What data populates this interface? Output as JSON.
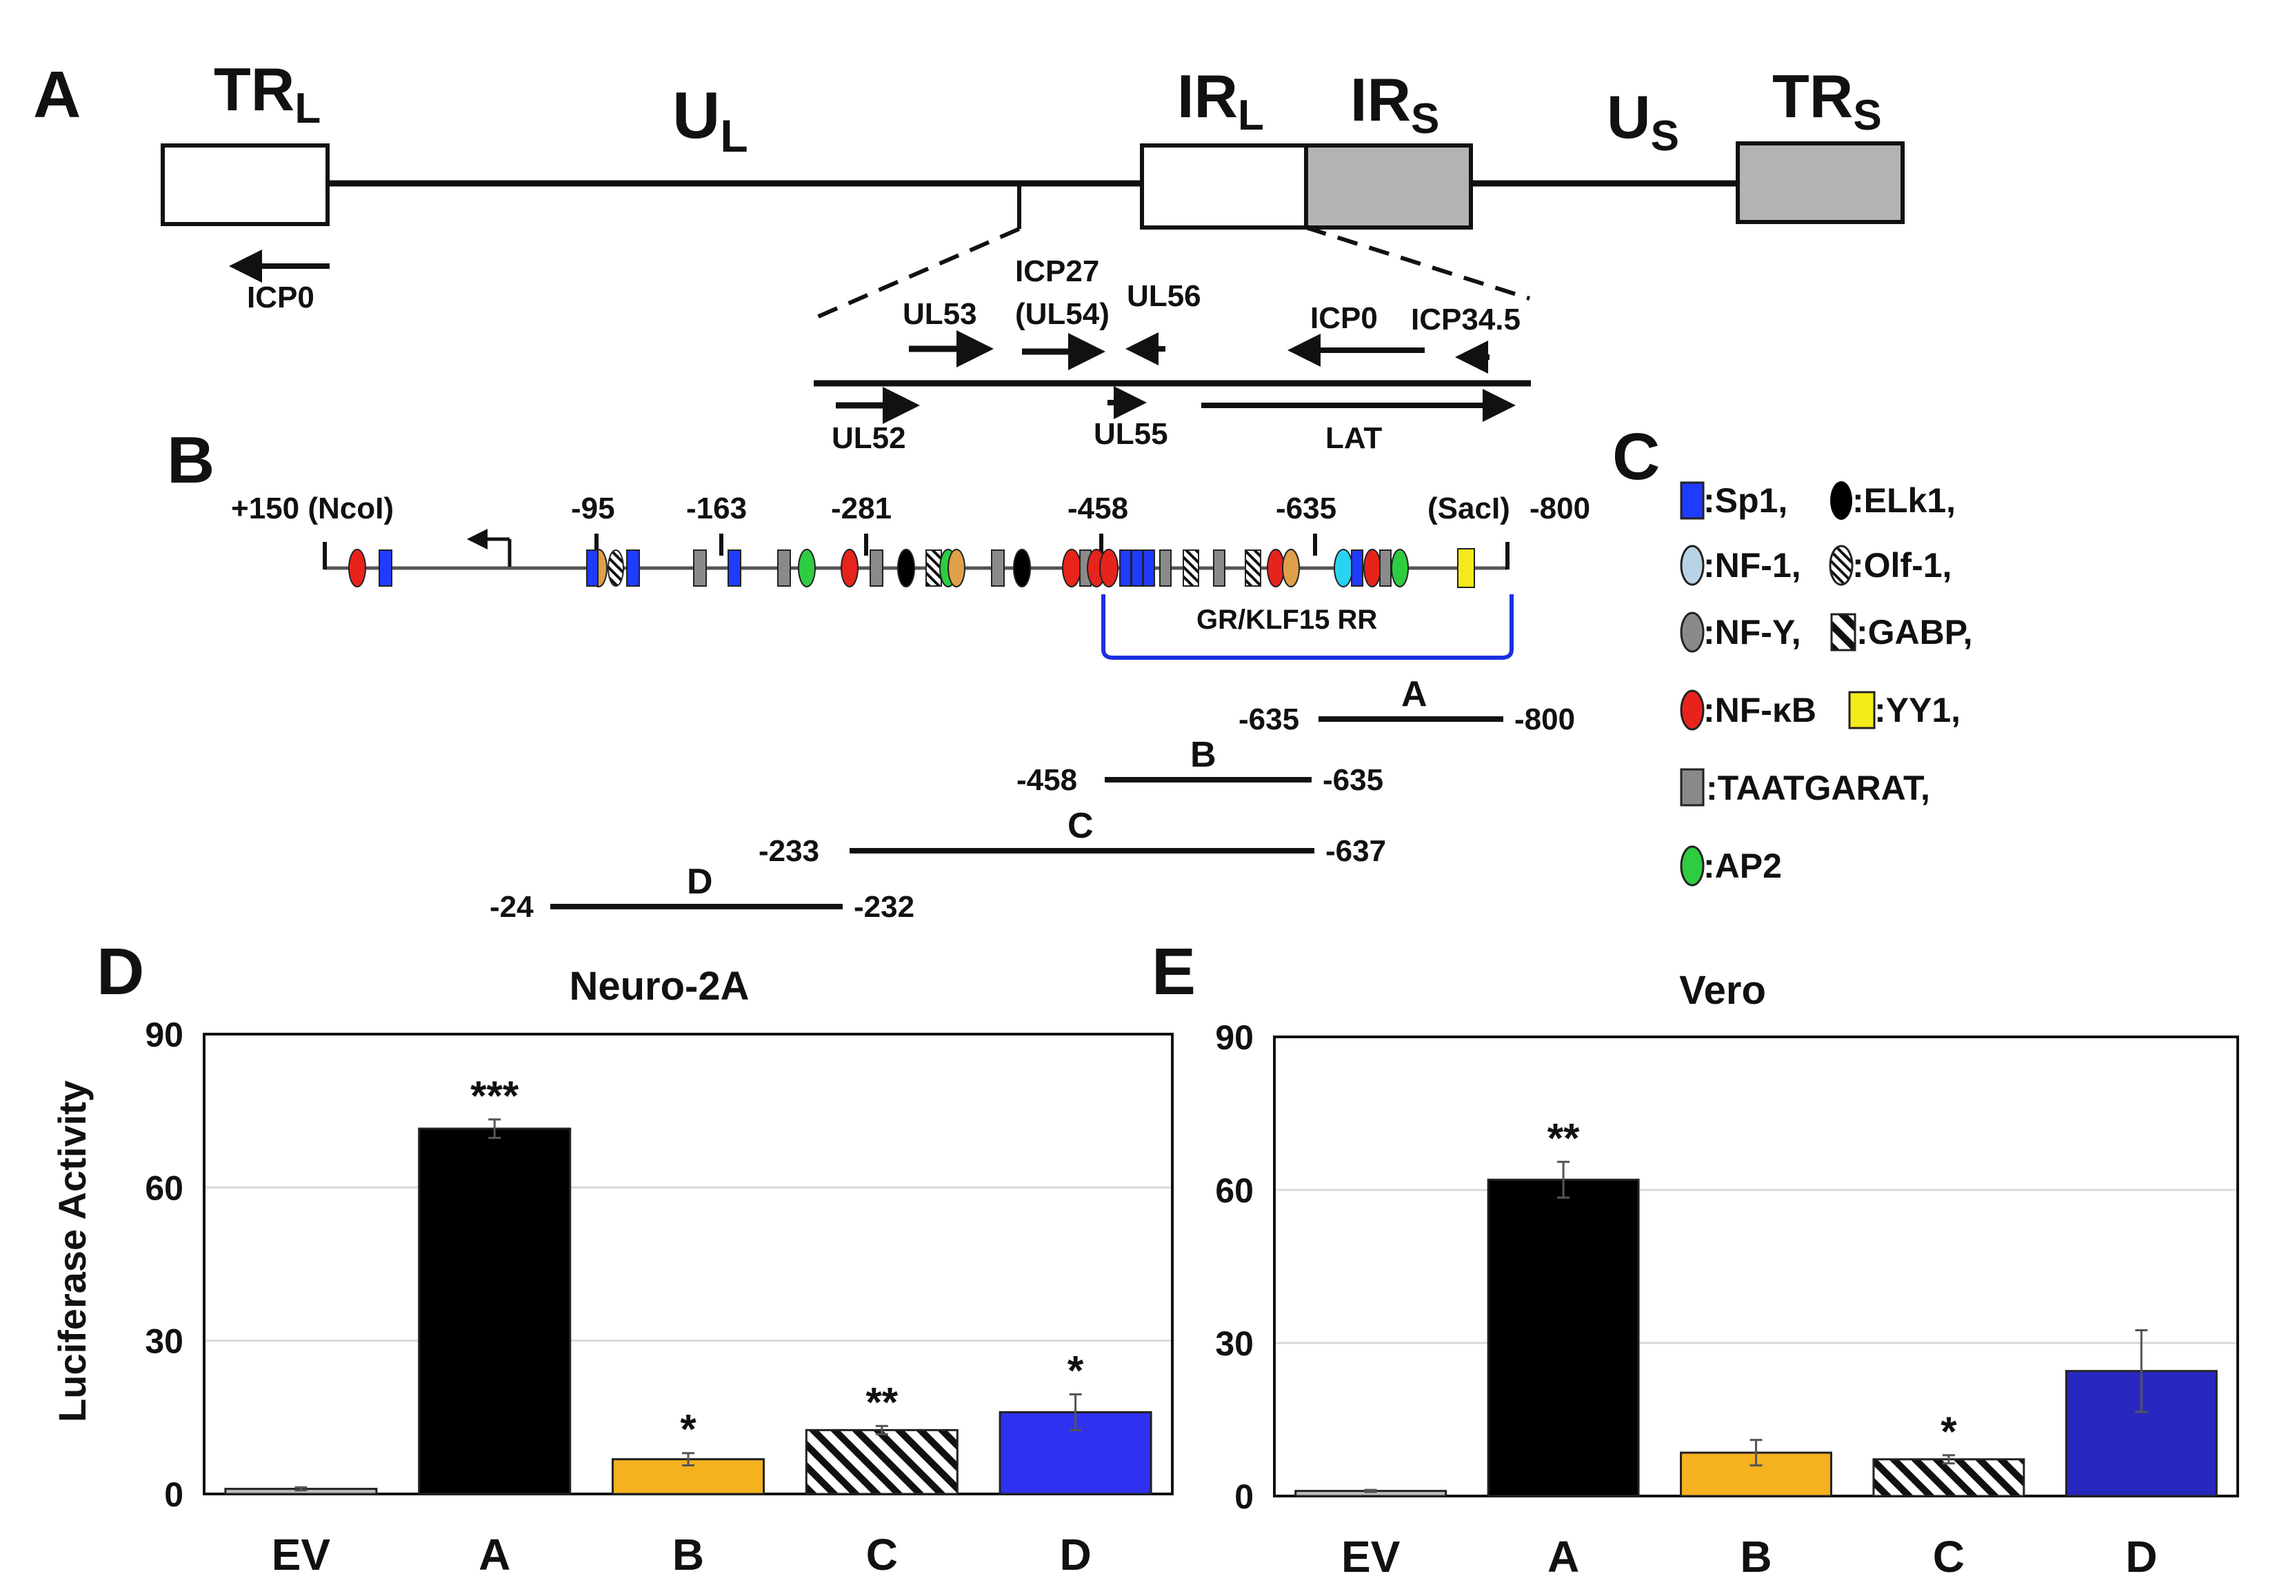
{
  "panels": {
    "a": "A",
    "b": "B",
    "c": "C",
    "d": "D",
    "e": "E"
  },
  "genome": {
    "trl": "TR",
    "trl_sub": "L",
    "ul": "U",
    "ul_sub": "L",
    "irl": "IR",
    "irl_sub": "L",
    "irs": "IR",
    "irs_sub": "S",
    "us": "U",
    "us_sub": "S",
    "trs": "TR",
    "trs_sub": "S",
    "icp0_left": "ICP0",
    "genes": {
      "ul53": "UL53",
      "icp27": "ICP27",
      "icp27_paren": "(UL54)",
      "ul56": "UL56",
      "icp0": "ICP0",
      "icp345": "ICP34.5",
      "ul52": "UL52",
      "ul55": "UL55",
      "lat": "LAT"
    }
  },
  "promoter": {
    "pos": {
      "p150": "+150 (NcoI)",
      "m95": "-95",
      "m163": "-163",
      "m281": "-281",
      "m458": "-458",
      "m635": "-635",
      "saci": "(SacI)",
      "m800": "-800"
    },
    "rr_label": "GR/KLF15 RR",
    "fragments": {
      "a": {
        "name": "A",
        "left": "-635",
        "right": "-800"
      },
      "b": {
        "name": "B",
        "left": "-458",
        "right": "-635"
      },
      "c": {
        "name": "C",
        "left": "-233",
        "right": "-637"
      },
      "d": {
        "name": "D",
        "left": "-24",
        "right": "-232"
      }
    }
  },
  "legend": {
    "sp1": ":Sp1,",
    "elk1": ":ELk1,",
    "nf1": ":NF-1,",
    "olf1": ":Olf-1,",
    "nfy": ":NF-Y,",
    "gabp": ":GABP,",
    "nfkb": ":NF-κB",
    "yy1": ":YY1,",
    "taat": ":TAATGARAT,",
    "ap2": ":AP2"
  },
  "colors": {
    "sp1": "#1f3bff",
    "nfkb": "#e8231c",
    "yy1": "#f5ea1a",
    "ap2": "#2ecc40",
    "nf1": "#b9d3e6",
    "taat": "#8a8a8a",
    "elk1": "#000000",
    "orange": "#e0a04a",
    "cyan": "#28d3f0",
    "rr_bracket": "#1a2fe0",
    "bar_ev": "#bdbdbd",
    "bar_a": "#000000",
    "bar_b": "#f5b21f",
    "bar_d1": "#3030f0",
    "bar_d2": "#2828c0"
  },
  "chart_data": [
    {
      "type": "bar",
      "title": "Neuro-2A",
      "ylabel": "Luciferase Activity",
      "xlabel": "",
      "categories": [
        "EV",
        "A",
        "B",
        "C",
        "D"
      ],
      "values": [
        1,
        71.5,
        6.8,
        12.5,
        16
      ],
      "errors": [
        0.3,
        1.8,
        1.2,
        0.8,
        3.5
      ],
      "significance": [
        "",
        "***",
        "*",
        "**",
        "*"
      ],
      "ylim": [
        0,
        90
      ],
      "yticks": [
        "0",
        "30",
        "60",
        "90"
      ],
      "grid": true
    },
    {
      "type": "bar",
      "title": "Vero",
      "ylabel": "",
      "xlabel": "",
      "categories": [
        "EV",
        "A",
        "B",
        "C",
        "D"
      ],
      "values": [
        1,
        62,
        8.5,
        7.2,
        24.5
      ],
      "errors": [
        0.2,
        3.5,
        2.5,
        0.8,
        8
      ],
      "significance": [
        "",
        "**",
        "",
        "*",
        ""
      ],
      "ylim": [
        0,
        90
      ],
      "yticks": [
        "0",
        "30",
        "60",
        "90"
      ],
      "grid": true
    }
  ]
}
